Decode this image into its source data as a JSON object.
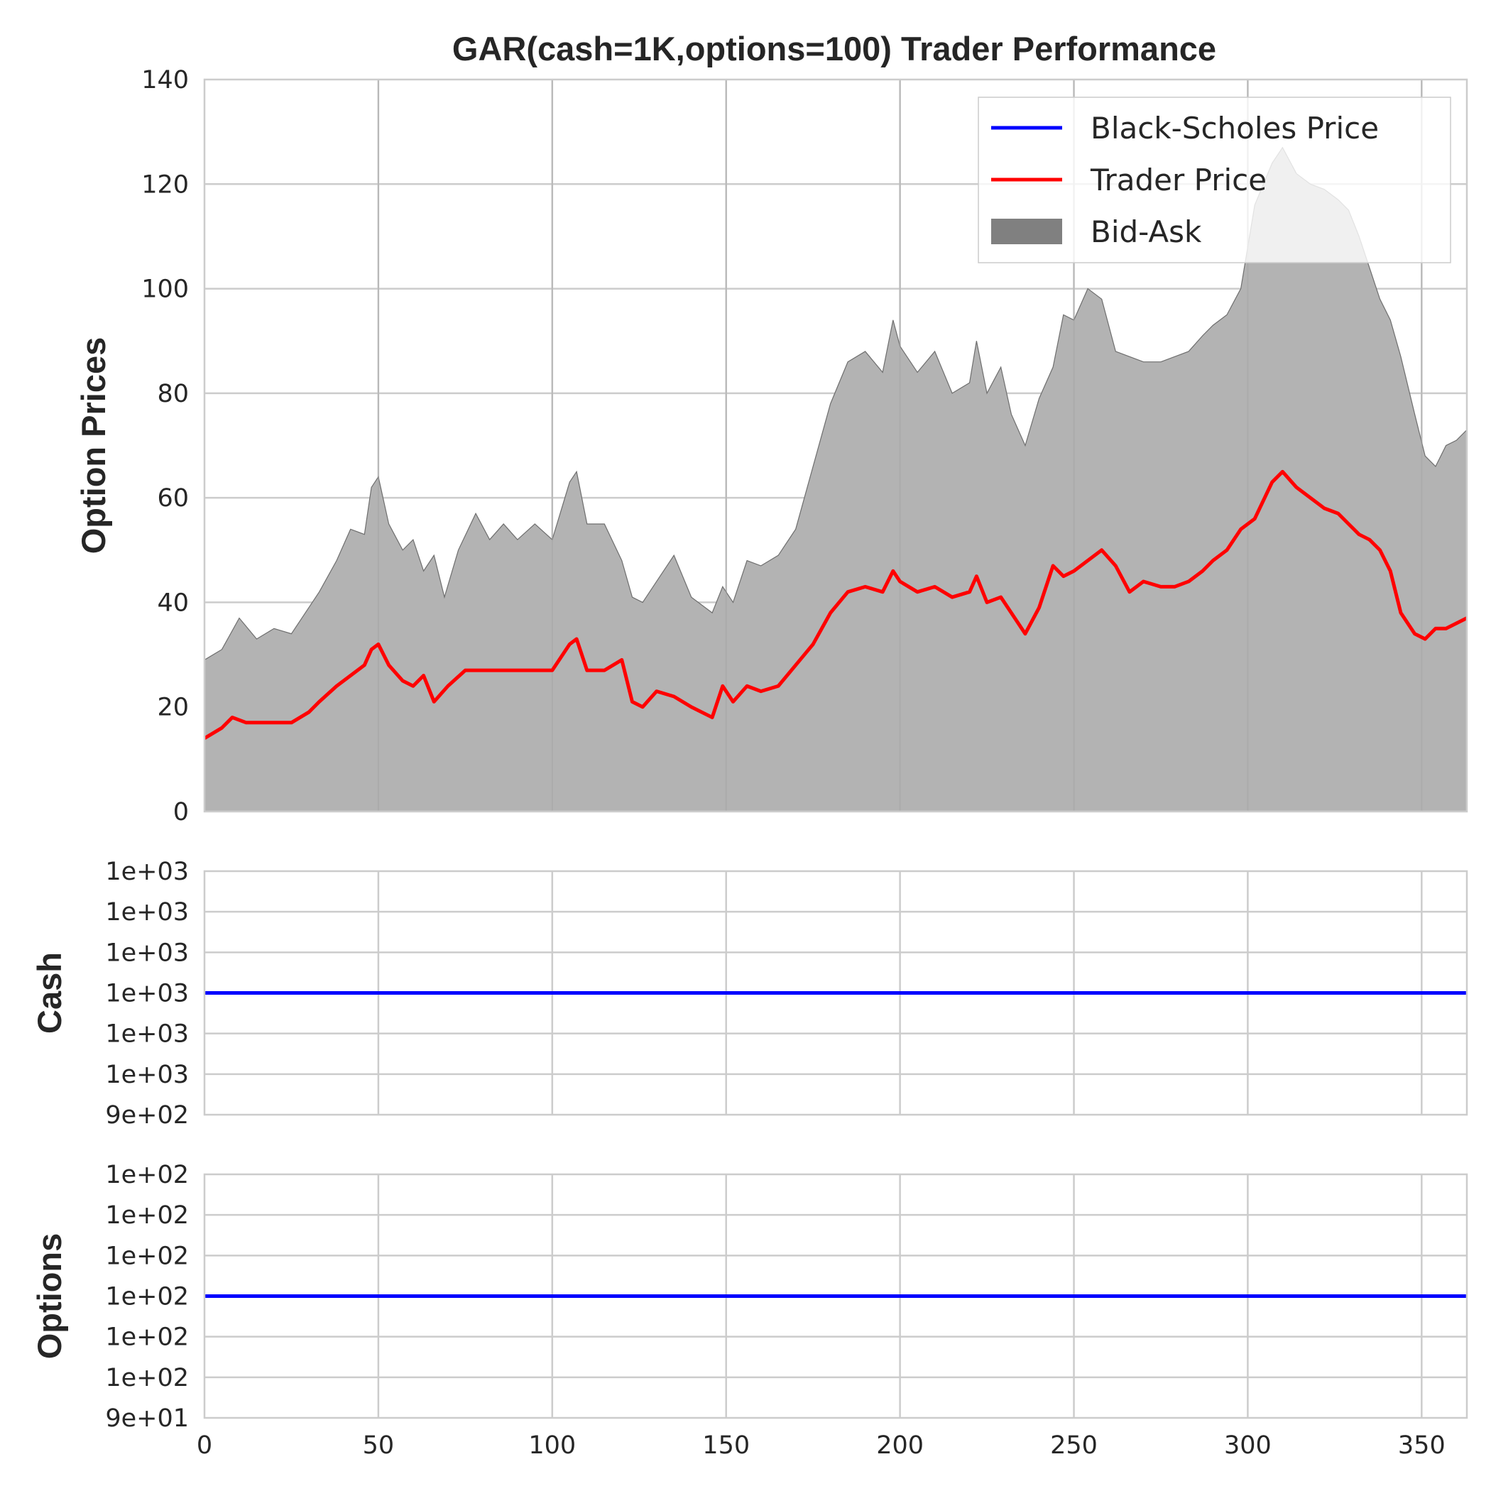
{
  "chart_data": [
    {
      "type": "area",
      "title": "GAR(cash=1K,options=100) Trader Performance",
      "ylabel": "Option Prices",
      "xlim": [
        0,
        363
      ],
      "ylim": [
        0,
        140
      ],
      "yticks": [
        0,
        20,
        40,
        60,
        80,
        100,
        120,
        140
      ],
      "yticklabels": [
        "0",
        "20",
        "40",
        "60",
        "80",
        "100",
        "120",
        "140"
      ],
      "grid": true,
      "legend_position": "top-right",
      "legend": [
        {
          "label": "Black-Scholes Price",
          "kind": "line",
          "color": "#0000ff"
        },
        {
          "label": "Trader Price",
          "kind": "line",
          "color": "#ff0000"
        },
        {
          "label": "Bid-Ask",
          "kind": "patch",
          "color": "#808080"
        }
      ],
      "series": [
        {
          "name": "Bid-Ask",
          "kind": "fill",
          "color": "#b3b3b3",
          "points": [
            [
              0,
              29
            ],
            [
              5,
              31
            ],
            [
              10,
              37
            ],
            [
              15,
              33
            ],
            [
              20,
              35
            ],
            [
              25,
              34
            ],
            [
              30,
              39
            ],
            [
              33,
              42
            ],
            [
              38,
              48
            ],
            [
              42,
              54
            ],
            [
              46,
              53
            ],
            [
              48,
              62
            ],
            [
              50,
              64
            ],
            [
              53,
              55
            ],
            [
              57,
              50
            ],
            [
              60,
              52
            ],
            [
              63,
              46
            ],
            [
              66,
              49
            ],
            [
              69,
              41
            ],
            [
              73,
              50
            ],
            [
              78,
              57
            ],
            [
              82,
              52
            ],
            [
              86,
              55
            ],
            [
              90,
              52
            ],
            [
              95,
              55
            ],
            [
              100,
              52
            ],
            [
              105,
              63
            ],
            [
              107,
              65
            ],
            [
              110,
              55
            ],
            [
              115,
              55
            ],
            [
              120,
              48
            ],
            [
              123,
              41
            ],
            [
              126,
              40
            ],
            [
              130,
              44
            ],
            [
              135,
              49
            ],
            [
              140,
              41
            ],
            [
              146,
              38
            ],
            [
              149,
              43
            ],
            [
              152,
              40
            ],
            [
              156,
              48
            ],
            [
              160,
              47
            ],
            [
              165,
              49
            ],
            [
              170,
              54
            ],
            [
              175,
              66
            ],
            [
              180,
              78
            ],
            [
              185,
              86
            ],
            [
              190,
              88
            ],
            [
              195,
              84
            ],
            [
              198,
              94
            ],
            [
              200,
              89
            ],
            [
              205,
              84
            ],
            [
              210,
              88
            ],
            [
              215,
              80
            ],
            [
              220,
              82
            ],
            [
              222,
              90
            ],
            [
              225,
              80
            ],
            [
              229,
              85
            ],
            [
              232,
              76
            ],
            [
              236,
              70
            ],
            [
              240,
              79
            ],
            [
              244,
              85
            ],
            [
              247,
              95
            ],
            [
              250,
              94
            ],
            [
              254,
              100
            ],
            [
              258,
              98
            ],
            [
              262,
              88
            ],
            [
              266,
              87
            ],
            [
              270,
              86
            ],
            [
              275,
              86
            ],
            [
              279,
              87
            ],
            [
              283,
              88
            ],
            [
              287,
              91
            ],
            [
              290,
              93
            ],
            [
              294,
              95
            ],
            [
              298,
              100
            ],
            [
              302,
              116
            ],
            [
              307,
              124
            ],
            [
              310,
              127
            ],
            [
              314,
              122
            ],
            [
              318,
              120
            ],
            [
              322,
              119
            ],
            [
              326,
              117
            ],
            [
              329,
              115
            ],
            [
              332,
              110
            ],
            [
              335,
              104
            ],
            [
              338,
              98
            ],
            [
              341,
              94
            ],
            [
              344,
              87
            ],
            [
              348,
              76
            ],
            [
              351,
              68
            ],
            [
              354,
              66
            ],
            [
              357,
              70
            ],
            [
              360,
              71
            ],
            [
              363,
              73
            ]
          ]
        },
        {
          "name": "Trader Price",
          "kind": "line",
          "color": "#ff0000",
          "points": [
            [
              0,
              14
            ],
            [
              5,
              16
            ],
            [
              8,
              18
            ],
            [
              12,
              17
            ],
            [
              16,
              17
            ],
            [
              20,
              17
            ],
            [
              25,
              17
            ],
            [
              30,
              19
            ],
            [
              33,
              21
            ],
            [
              38,
              24
            ],
            [
              42,
              26
            ],
            [
              46,
              28
            ],
            [
              48,
              31
            ],
            [
              50,
              32
            ],
            [
              53,
              28
            ],
            [
              57,
              25
            ],
            [
              60,
              24
            ],
            [
              63,
              26
            ],
            [
              66,
              21
            ],
            [
              70,
              24
            ],
            [
              75,
              27
            ],
            [
              80,
              27
            ],
            [
              85,
              27
            ],
            [
              90,
              27
            ],
            [
              95,
              27
            ],
            [
              100,
              27
            ],
            [
              105,
              32
            ],
            [
              107,
              33
            ],
            [
              110,
              27
            ],
            [
              115,
              27
            ],
            [
              120,
              29
            ],
            [
              123,
              21
            ],
            [
              126,
              20
            ],
            [
              130,
              23
            ],
            [
              135,
              22
            ],
            [
              140,
              20
            ],
            [
              146,
              18
            ],
            [
              149,
              24
            ],
            [
              152,
              21
            ],
            [
              156,
              24
            ],
            [
              160,
              23
            ],
            [
              165,
              24
            ],
            [
              170,
              28
            ],
            [
              175,
              32
            ],
            [
              180,
              38
            ],
            [
              185,
              42
            ],
            [
              190,
              43
            ],
            [
              195,
              42
            ],
            [
              198,
              46
            ],
            [
              200,
              44
            ],
            [
              205,
              42
            ],
            [
              210,
              43
            ],
            [
              215,
              41
            ],
            [
              220,
              42
            ],
            [
              222,
              45
            ],
            [
              225,
              40
            ],
            [
              229,
              41
            ],
            [
              232,
              38
            ],
            [
              236,
              34
            ],
            [
              240,
              39
            ],
            [
              244,
              47
            ],
            [
              247,
              45
            ],
            [
              250,
              46
            ],
            [
              254,
              48
            ],
            [
              258,
              50
            ],
            [
              262,
              47
            ],
            [
              266,
              42
            ],
            [
              270,
              44
            ],
            [
              275,
              43
            ],
            [
              279,
              43
            ],
            [
              283,
              44
            ],
            [
              287,
              46
            ],
            [
              290,
              48
            ],
            [
              294,
              50
            ],
            [
              298,
              54
            ],
            [
              302,
              56
            ],
            [
              307,
              63
            ],
            [
              310,
              65
            ],
            [
              314,
              62
            ],
            [
              318,
              60
            ],
            [
              322,
              58
            ],
            [
              326,
              57
            ],
            [
              329,
              55
            ],
            [
              332,
              53
            ],
            [
              335,
              52
            ],
            [
              338,
              50
            ],
            [
              341,
              46
            ],
            [
              344,
              38
            ],
            [
              348,
              34
            ],
            [
              351,
              33
            ],
            [
              354,
              35
            ],
            [
              357,
              35
            ],
            [
              360,
              36
            ],
            [
              363,
              37
            ]
          ]
        }
      ]
    },
    {
      "type": "line",
      "ylabel": "Cash",
      "xlim": [
        0,
        363
      ],
      "ylim": [
        900,
        1100
      ],
      "yticklabels": [
        "9e+02",
        "1e+03",
        "1e+03",
        "1e+03",
        "1e+03",
        "1e+03",
        "1e+03"
      ],
      "grid": true,
      "series": [
        {
          "kind": "line",
          "color": "#0000ff",
          "points": [
            [
              0,
              1000
            ],
            [
              363,
              1000
            ]
          ]
        }
      ]
    },
    {
      "type": "line",
      "ylabel": "Options",
      "xlim": [
        0,
        363
      ],
      "ylim": [
        90,
        110
      ],
      "xticks": [
        0,
        50,
        100,
        150,
        200,
        250,
        300,
        350
      ],
      "xticklabels": [
        "0",
        "50",
        "100",
        "150",
        "200",
        "250",
        "300",
        "350"
      ],
      "yticklabels": [
        "9e+01",
        "1e+02",
        "1e+02",
        "1e+02",
        "1e+02",
        "1e+02",
        "1e+02"
      ],
      "grid": true,
      "series": [
        {
          "kind": "line",
          "color": "#0000ff",
          "points": [
            [
              0,
              100
            ],
            [
              363,
              100
            ]
          ]
        }
      ]
    }
  ]
}
